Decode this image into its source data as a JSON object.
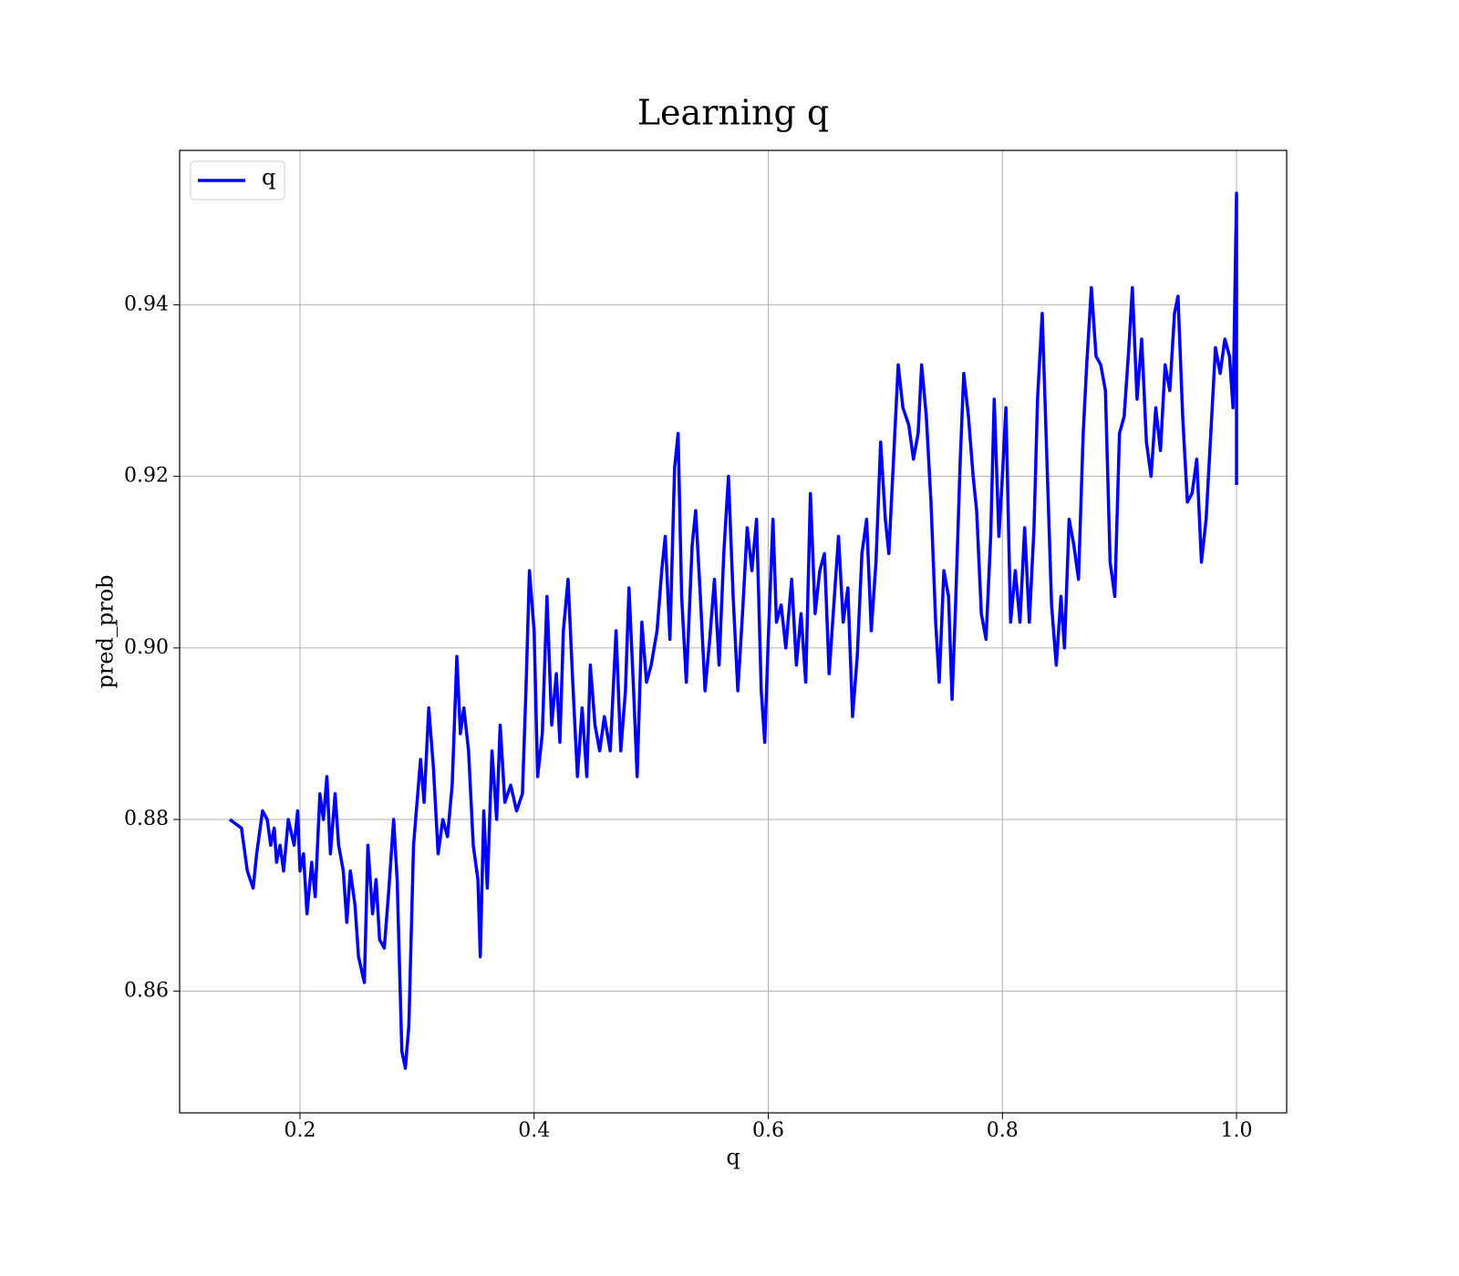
{
  "chart_data": {
    "type": "line",
    "title": "Learning q",
    "x_label": "q",
    "y_label": "pred_prob",
    "x": [
      0.14,
      0.15,
      0.155,
      0.16,
      0.163,
      0.168,
      0.172,
      0.175,
      0.178,
      0.18,
      0.183,
      0.186,
      0.19,
      0.195,
      0.198,
      0.2,
      0.203,
      0.206,
      0.21,
      0.213,
      0.217,
      0.22,
      0.223,
      0.226,
      0.23,
      0.233,
      0.237,
      0.24,
      0.243,
      0.247,
      0.25,
      0.255,
      0.258,
      0.262,
      0.265,
      0.268,
      0.272,
      0.276,
      0.28,
      0.283,
      0.287,
      0.29,
      0.293,
      0.297,
      0.3,
      0.303,
      0.306,
      0.31,
      0.314,
      0.318,
      0.322,
      0.326,
      0.33,
      0.334,
      0.337,
      0.34,
      0.344,
      0.348,
      0.352,
      0.354,
      0.357,
      0.36,
      0.364,
      0.368,
      0.371,
      0.375,
      0.38,
      0.385,
      0.39,
      0.393,
      0.396,
      0.4,
      0.403,
      0.407,
      0.411,
      0.415,
      0.419,
      0.422,
      0.425,
      0.429,
      0.433,
      0.437,
      0.441,
      0.445,
      0.448,
      0.452,
      0.456,
      0.46,
      0.465,
      0.47,
      0.474,
      0.478,
      0.481,
      0.485,
      0.488,
      0.492,
      0.496,
      0.5,
      0.505,
      0.509,
      0.512,
      0.516,
      0.52,
      0.523,
      0.526,
      0.53,
      0.535,
      0.538,
      0.542,
      0.546,
      0.55,
      0.554,
      0.558,
      0.562,
      0.566,
      0.57,
      0.574,
      0.578,
      0.582,
      0.586,
      0.59,
      0.594,
      0.597,
      0.6,
      0.604,
      0.607,
      0.611,
      0.615,
      0.62,
      0.624,
      0.628,
      0.632,
      0.636,
      0.64,
      0.644,
      0.648,
      0.652,
      0.656,
      0.66,
      0.664,
      0.668,
      0.672,
      0.676,
      0.68,
      0.684,
      0.688,
      0.692,
      0.696,
      0.7,
      0.703,
      0.707,
      0.711,
      0.715,
      0.72,
      0.724,
      0.728,
      0.731,
      0.735,
      0.739,
      0.743,
      0.746,
      0.75,
      0.754,
      0.757,
      0.76,
      0.764,
      0.767,
      0.771,
      0.775,
      0.778,
      0.782,
      0.786,
      0.79,
      0.793,
      0.797,
      0.8,
      0.803,
      0.807,
      0.811,
      0.815,
      0.819,
      0.823,
      0.827,
      0.83,
      0.834,
      0.838,
      0.842,
      0.846,
      0.85,
      0.853,
      0.857,
      0.861,
      0.865,
      0.869,
      0.872,
      0.876,
      0.88,
      0.884,
      0.888,
      0.892,
      0.896,
      0.9,
      0.904,
      0.908,
      0.911,
      0.915,
      0.919,
      0.923,
      0.927,
      0.931,
      0.935,
      0.939,
      0.943,
      0.947,
      0.95,
      0.954,
      0.958,
      0.962,
      0.966,
      0.97,
      0.974,
      0.978,
      0.982,
      0.986,
      0.99,
      0.994,
      0.997,
      1.0,
      1.0
    ],
    "series": [
      {
        "name": "q",
        "color": "#0000ff",
        "values": [
          0.88,
          0.879,
          0.874,
          0.872,
          0.876,
          0.881,
          0.88,
          0.877,
          0.879,
          0.875,
          0.877,
          0.874,
          0.88,
          0.877,
          0.881,
          0.874,
          0.876,
          0.869,
          0.875,
          0.871,
          0.883,
          0.88,
          0.885,
          0.876,
          0.883,
          0.877,
          0.874,
          0.868,
          0.874,
          0.87,
          0.864,
          0.861,
          0.877,
          0.869,
          0.873,
          0.866,
          0.865,
          0.872,
          0.88,
          0.873,
          0.853,
          0.851,
          0.856,
          0.877,
          0.882,
          0.887,
          0.882,
          0.893,
          0.886,
          0.876,
          0.88,
          0.878,
          0.884,
          0.899,
          0.89,
          0.893,
          0.888,
          0.877,
          0.873,
          0.864,
          0.881,
          0.872,
          0.888,
          0.88,
          0.891,
          0.882,
          0.884,
          0.881,
          0.883,
          0.895,
          0.909,
          0.902,
          0.885,
          0.89,
          0.906,
          0.891,
          0.897,
          0.889,
          0.902,
          0.908,
          0.896,
          0.885,
          0.893,
          0.885,
          0.898,
          0.891,
          0.888,
          0.892,
          0.888,
          0.902,
          0.888,
          0.895,
          0.907,
          0.895,
          0.885,
          0.903,
          0.896,
          0.898,
          0.902,
          0.909,
          0.913,
          0.901,
          0.921,
          0.925,
          0.906,
          0.896,
          0.912,
          0.916,
          0.906,
          0.895,
          0.901,
          0.908,
          0.898,
          0.911,
          0.92,
          0.906,
          0.895,
          0.904,
          0.914,
          0.909,
          0.915,
          0.895,
          0.889,
          0.901,
          0.915,
          0.903,
          0.905,
          0.9,
          0.908,
          0.898,
          0.904,
          0.896,
          0.918,
          0.904,
          0.909,
          0.911,
          0.897,
          0.905,
          0.913,
          0.903,
          0.907,
          0.892,
          0.899,
          0.911,
          0.915,
          0.902,
          0.91,
          0.924,
          0.915,
          0.911,
          0.922,
          0.933,
          0.928,
          0.926,
          0.922,
          0.925,
          0.933,
          0.927,
          0.917,
          0.903,
          0.896,
          0.909,
          0.906,
          0.894,
          0.905,
          0.922,
          0.932,
          0.927,
          0.92,
          0.916,
          0.904,
          0.901,
          0.913,
          0.929,
          0.913,
          0.92,
          0.928,
          0.903,
          0.909,
          0.903,
          0.914,
          0.903,
          0.914,
          0.929,
          0.939,
          0.922,
          0.905,
          0.898,
          0.906,
          0.9,
          0.915,
          0.912,
          0.908,
          0.925,
          0.933,
          0.942,
          0.934,
          0.933,
          0.93,
          0.91,
          0.906,
          0.925,
          0.927,
          0.935,
          0.942,
          0.929,
          0.936,
          0.924,
          0.92,
          0.928,
          0.923,
          0.933,
          0.93,
          0.939,
          0.941,
          0.927,
          0.917,
          0.918,
          0.922,
          0.91,
          0.915,
          0.925,
          0.935,
          0.932,
          0.936,
          0.934,
          0.928,
          0.953,
          0.919
        ]
      }
    ],
    "xlim": [
      0.0972,
      1.0428
    ],
    "ylim": [
      0.8458,
      0.958
    ],
    "xticks": [
      0.2,
      0.4,
      0.6,
      0.8,
      {
        "value": 1,
        "label": "1.0"
      }
    ],
    "yticks": [
      0.86,
      0.88,
      {
        "value": 0.9,
        "label": "0.90"
      },
      0.92,
      0.94
    ],
    "grid": true,
    "legend": "upper left"
  }
}
